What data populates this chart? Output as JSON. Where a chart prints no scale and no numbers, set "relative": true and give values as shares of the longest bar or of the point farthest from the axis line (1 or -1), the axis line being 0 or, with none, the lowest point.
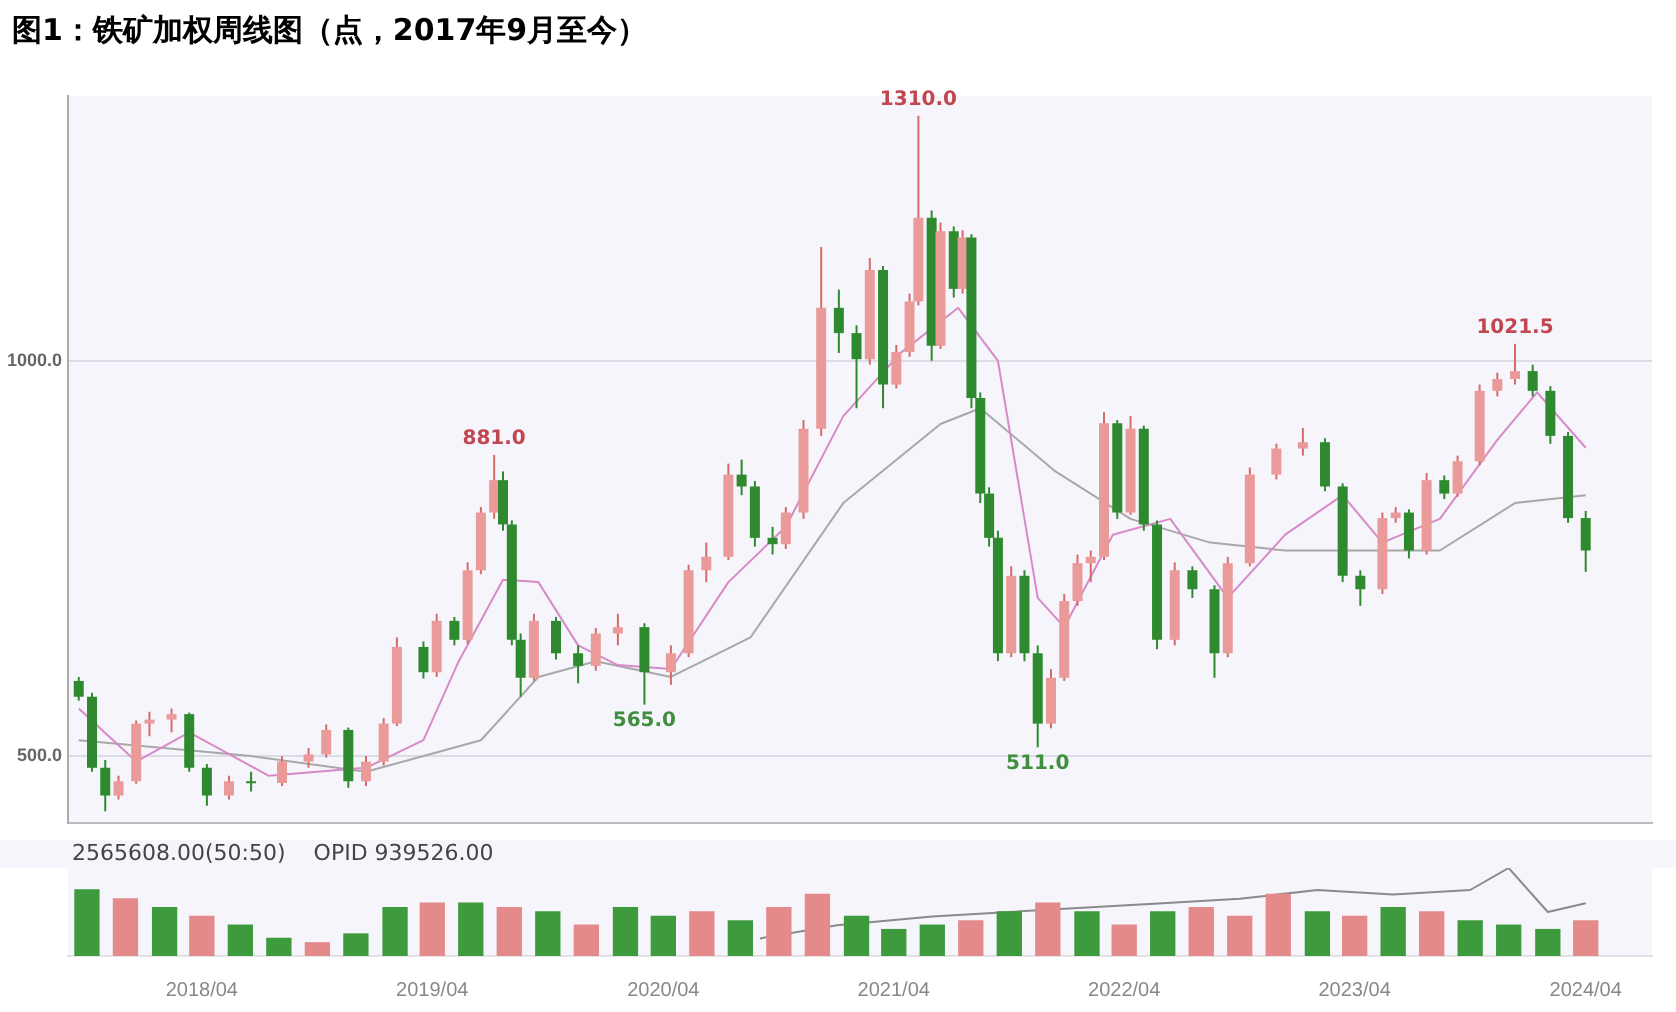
{
  "chart_data": [
    {
      "type": "candlestick",
      "title": "图1：铁矿加权周线图（点，2017年9月至今）",
      "x": [
        "2017-09-18",
        "2017-10-09",
        "2017-10-30",
        "2017-11-20",
        "2017-12-18",
        "2018-01-08",
        "2018-02-12",
        "2018-03-12",
        "2018-04-09",
        "2018-05-14",
        "2018-06-18",
        "2018-08-06",
        "2018-09-17",
        "2018-10-15",
        "2018-11-19",
        "2018-12-17",
        "2019-01-14",
        "2019-02-04",
        "2019-03-18",
        "2019-04-08",
        "2019-05-06",
        "2019-05-27",
        "2019-06-17",
        "2019-07-08",
        "2019-07-22",
        "2019-08-05",
        "2019-08-19",
        "2019-09-09",
        "2019-10-14",
        "2019-11-18",
        "2019-12-16",
        "2020-01-20",
        "2020-03-02",
        "2020-04-13",
        "2020-05-11",
        "2020-06-08",
        "2020-07-13",
        "2020-08-03",
        "2020-08-24",
        "2020-09-21",
        "2020-10-12",
        "2020-11-09",
        "2020-12-07",
        "2021-01-04",
        "2021-02-01",
        "2021-02-22",
        "2021-03-15",
        "2021-04-05",
        "2021-04-26",
        "2021-05-10",
        "2021-05-31",
        "2021-06-14",
        "2021-07-05",
        "2021-07-19",
        "2021-08-02",
        "2021-08-16",
        "2021-08-30",
        "2021-09-13",
        "2021-10-04",
        "2021-10-25",
        "2021-11-15",
        "2021-12-06",
        "2021-12-27",
        "2022-01-17",
        "2022-02-07",
        "2022-02-28",
        "2022-03-21",
        "2022-04-11",
        "2022-05-02",
        "2022-05-23",
        "2022-06-20",
        "2022-07-18",
        "2022-08-22",
        "2022-09-12",
        "2022-10-17",
        "2022-11-28",
        "2023-01-09",
        "2023-02-13",
        "2023-03-13",
        "2023-04-10",
        "2023-05-15",
        "2023-06-05",
        "2023-06-26",
        "2023-07-24",
        "2023-08-21",
        "2023-09-11",
        "2023-10-16",
        "2023-11-13",
        "2023-12-11",
        "2024-01-08",
        "2024-02-05",
        "2024-03-04",
        "2024-04-01"
      ],
      "ohlc": [
        [
          595,
          600,
          570,
          575
        ],
        [
          575,
          580,
          480,
          485
        ],
        [
          485,
          495,
          430,
          450
        ],
        [
          450,
          475,
          445,
          468
        ],
        [
          468,
          545,
          465,
          541
        ],
        [
          541,
          556,
          525,
          546
        ],
        [
          546,
          560,
          530,
          553
        ],
        [
          553,
          555,
          480,
          485
        ],
        [
          485,
          490,
          437,
          450
        ],
        [
          450,
          475,
          445,
          468
        ],
        [
          468,
          480,
          455,
          466
        ],
        [
          466,
          500,
          462,
          493
        ],
        [
          493,
          510,
          485,
          502
        ],
        [
          502,
          540,
          498,
          533
        ],
        [
          533,
          536,
          460,
          468
        ],
        [
          468,
          500,
          462,
          493
        ],
        [
          493,
          548,
          488,
          541
        ],
        [
          541,
          650,
          538,
          638
        ],
        [
          638,
          645,
          598,
          606
        ],
        [
          606,
          680,
          600,
          671
        ],
        [
          671,
          676,
          640,
          647
        ],
        [
          647,
          745,
          642,
          735
        ],
        [
          735,
          815,
          730,
          808
        ],
        [
          808,
          881,
          800,
          849
        ],
        [
          849,
          860,
          785,
          793
        ],
        [
          793,
          798,
          640,
          647
        ],
        [
          647,
          655,
          575,
          599
        ],
        [
          599,
          680,
          595,
          671
        ],
        [
          671,
          676,
          622,
          630
        ],
        [
          630,
          640,
          592,
          614
        ],
        [
          614,
          662,
          608,
          655
        ],
        [
          655,
          680,
          640,
          663
        ],
        [
          663,
          668,
          565,
          606
        ],
        [
          606,
          640,
          590,
          630
        ],
        [
          630,
          742,
          625,
          735
        ],
        [
          735,
          770,
          720,
          752
        ],
        [
          752,
          870,
          748,
          856
        ],
        [
          856,
          875,
          830,
          841
        ],
        [
          841,
          848,
          765,
          776
        ],
        [
          776,
          790,
          755,
          768
        ],
        [
          768,
          815,
          762,
          808
        ],
        [
          808,
          925,
          800,
          914
        ],
        [
          914,
          1144,
          905,
          1067
        ],
        [
          1067,
          1090,
          1010,
          1035
        ],
        [
          1035,
          1045,
          940,
          1002
        ],
        [
          1002,
          1130,
          995,
          1115
        ],
        [
          1115,
          1120,
          940,
          970
        ],
        [
          970,
          1020,
          965,
          1011
        ],
        [
          1011,
          1085,
          1005,
          1075
        ],
        [
          1075,
          1310,
          1070,
          1181
        ],
        [
          1181,
          1190,
          1000,
          1019
        ],
        [
          1019,
          1175,
          1015,
          1164
        ],
        [
          1164,
          1170,
          1080,
          1091
        ],
        [
          1091,
          1165,
          1085,
          1156
        ],
        [
          1156,
          1160,
          940,
          953
        ],
        [
          953,
          960,
          820,
          832
        ],
        [
          832,
          840,
          765,
          776
        ],
        [
          776,
          785,
          620,
          630
        ],
        [
          630,
          740,
          625,
          728
        ],
        [
          728,
          735,
          620,
          630
        ],
        [
          630,
          640,
          511,
          541
        ],
        [
          541,
          610,
          535,
          599
        ],
        [
          599,
          705,
          595,
          696
        ],
        [
          696,
          755,
          690,
          744
        ],
        [
          744,
          760,
          720,
          752
        ],
        [
          752,
          935,
          748,
          921
        ],
        [
          921,
          925,
          800,
          808
        ],
        [
          808,
          930,
          805,
          914
        ],
        [
          914,
          918,
          785,
          793
        ],
        [
          793,
          798,
          635,
          647
        ],
        [
          647,
          745,
          640,
          735
        ],
        [
          735,
          740,
          700,
          711
        ],
        [
          711,
          716,
          599,
          630
        ],
        [
          630,
          752,
          625,
          744
        ],
        [
          744,
          865,
          740,
          856
        ],
        [
          856,
          895,
          850,
          889
        ],
        [
          889,
          915,
          880,
          897
        ],
        [
          897,
          902,
          835,
          841
        ],
        [
          841,
          845,
          720,
          728
        ],
        [
          728,
          735,
          690,
          711
        ],
        [
          711,
          808,
          705,
          801
        ],
        [
          801,
          815,
          795,
          808
        ],
        [
          808,
          812,
          750,
          760
        ],
        [
          760,
          858,
          755,
          849
        ],
        [
          849,
          855,
          825,
          832
        ],
        [
          832,
          880,
          828,
          873
        ],
        [
          873,
          970,
          868,
          962
        ],
        [
          962,
          985,
          955,
          977
        ],
        [
          977,
          1021.5,
          970,
          987
        ],
        [
          987,
          995,
          955,
          962
        ],
        [
          962,
          968,
          895,
          905
        ],
        [
          905,
          910,
          795,
          801
        ],
        [
          801,
          810,
          733,
          760
        ]
      ],
      "series": [
        {
          "type": "line",
          "color": "#d88ac8",
          "x": [
            "2017-09-18",
            "2017-12-18",
            "2018-03-12",
            "2018-07-16",
            "2018-12-17",
            "2019-03-18",
            "2019-05-13",
            "2019-07-22",
            "2019-09-16",
            "2019-11-18",
            "2020-01-20",
            "2020-04-13",
            "2020-07-13",
            "2020-10-12",
            "2021-01-11",
            "2021-04-12",
            "2021-07-12",
            "2021-09-13",
            "2021-11-15",
            "2021-12-27",
            "2022-03-14",
            "2022-06-13",
            "2022-09-12",
            "2022-12-12",
            "2023-03-13",
            "2023-05-15",
            "2023-08-14",
            "2023-11-13",
            "2024-01-15",
            "2024-04-01"
          ],
          "values": [
            560,
            493,
            530,
            475,
            485,
            520,
            620,
            723,
            720,
            640,
            615,
            610,
            720,
            790,
            930,
            1010,
            1067,
            1000,
            700,
            663,
            780,
            800,
            700,
            780,
            830,
            770,
            800,
            900,
            960,
            890
          ]
        },
        {
          "type": "line",
          "color": "#a8a8a8",
          "x": [
            "2017-09-18",
            "2018-06-18",
            "2018-12-17",
            "2019-06-17",
            "2019-09-16",
            "2019-12-16",
            "2020-04-13",
            "2020-08-17",
            "2021-01-11",
            "2021-06-14",
            "2021-08-16",
            "2021-12-13",
            "2022-04-11",
            "2022-08-15",
            "2022-12-12",
            "2023-04-10",
            "2023-08-14",
            "2023-12-11",
            "2024-04-01"
          ],
          "values": [
            520,
            500,
            480,
            520,
            600,
            620,
            600,
            650,
            820,
            920,
            940,
            860,
            800,
            770,
            760,
            760,
            760,
            820,
            830
          ]
        }
      ],
      "xlim": [
        "2017-09-01",
        "2024-07-15"
      ],
      "ylim": [
        415,
        1335
      ],
      "yticks": [
        {
          "value": 500,
          "label": "500.0"
        },
        {
          "value": 1000,
          "label": "1000.0"
        }
      ],
      "grid": "y",
      "tick_labels": "y",
      "annotations": [
        {
          "text": "881.0",
          "x": "2019-07-08",
          "y": 881
        },
        {
          "text": "565.0",
          "x": "2020-03-02",
          "y": 565
        },
        {
          "text": "1310.0",
          "x": "2021-05-10",
          "y": 1310
        },
        {
          "text": "511.0",
          "x": "2021-11-15",
          "y": 511
        },
        {
          "text": "1021.5",
          "x": "2023-12-11",
          "y": 1021.5
        }
      ]
    },
    {
      "type": "bar",
      "relative": true,
      "x": [
        "2017-10-01",
        "2017-12-01",
        "2018-02-01",
        "2018-04-01",
        "2018-06-01",
        "2018-08-01",
        "2018-10-01",
        "2018-12-01",
        "2019-02-01",
        "2019-04-01",
        "2019-06-01",
        "2019-08-01",
        "2019-10-01",
        "2019-12-01",
        "2020-02-01",
        "2020-04-01",
        "2020-06-01",
        "2020-08-01",
        "2020-10-01",
        "2020-12-01",
        "2021-02-01",
        "2021-04-01",
        "2021-06-01",
        "2021-08-01",
        "2021-10-01",
        "2021-12-01",
        "2022-02-01",
        "2022-04-01",
        "2022-06-01",
        "2022-08-01",
        "2022-10-01",
        "2022-12-01",
        "2023-02-01",
        "2023-04-01",
        "2023-06-01",
        "2023-08-01",
        "2023-10-01",
        "2023-12-01",
        "2024-02-01",
        "2024-04-01"
      ],
      "values": [
        0.75,
        0.65,
        0.55,
        0.45,
        0.35,
        0.2,
        0.15,
        0.25,
        0.55,
        0.6,
        0.6,
        0.55,
        0.5,
        0.35,
        0.55,
        0.45,
        0.5,
        0.4,
        0.55,
        0.7,
        0.45,
        0.3,
        0.35,
        0.4,
        0.5,
        0.6,
        0.5,
        0.35,
        0.5,
        0.55,
        0.45,
        0.7,
        0.5,
        0.45,
        0.55,
        0.5,
        0.4,
        0.35,
        0.3,
        0.4
      ],
      "colors": [
        "#3d9a3d",
        "#e48a8a",
        "#3d9a3d",
        "#e48a8a",
        "#3d9a3d",
        "#3d9a3d",
        "#e48a8a",
        "#3d9a3d",
        "#3d9a3d",
        "#e48a8a",
        "#3d9a3d",
        "#e48a8a",
        "#3d9a3d",
        "#e48a8a",
        "#3d9a3d",
        "#3d9a3d",
        "#e48a8a",
        "#3d9a3d",
        "#e48a8a",
        "#e48a8a",
        "#3d9a3d",
        "#3d9a3d",
        "#3d9a3d",
        "#e48a8a",
        "#3d9a3d",
        "#e48a8a",
        "#3d9a3d",
        "#e48a8a",
        "#3d9a3d",
        "#e48a8a",
        "#e48a8a",
        "#e48a8a",
        "#3d9a3d",
        "#e48a8a",
        "#3d9a3d",
        "#e48a8a",
        "#3d9a3d",
        "#3d9a3d",
        "#3d9a3d",
        "#e48a8a"
      ],
      "series": [
        {
          "type": "line",
          "color": "#8a8a8a",
          "x": [
            "2020-09-01",
            "2021-01-01",
            "2021-06-01",
            "2021-10-01",
            "2022-02-01",
            "2022-06-01",
            "2022-10-01",
            "2023-02-01",
            "2023-06-01",
            "2023-10-01",
            "2023-12-01",
            "2024-02-01",
            "2024-04-01"
          ],
          "values": [
            0.2,
            0.35,
            0.45,
            0.5,
            0.55,
            0.6,
            0.65,
            0.75,
            0.7,
            0.75,
            1,
            0.5,
            0.6
          ]
        }
      ],
      "xlim": [
        "2017-09-01",
        "2024-07-15"
      ],
      "xticks": [
        {
          "value": "2018-04-01",
          "label": "2018/04"
        },
        {
          "value": "2019-04-01",
          "label": "2019/04"
        },
        {
          "value": "2020-04-01",
          "label": "2020/04"
        },
        {
          "value": "2021-04-01",
          "label": "2021/04"
        },
        {
          "value": "2022-04-01",
          "label": "2022/04"
        },
        {
          "value": "2023-04-01",
          "label": "2023/04"
        },
        {
          "value": "2024-04-01",
          "label": "2024/04"
        }
      ],
      "tick_labels": "x",
      "annotations": [
        "2565608.00(50:50)",
        "OPID 939526.00"
      ]
    }
  ]
}
